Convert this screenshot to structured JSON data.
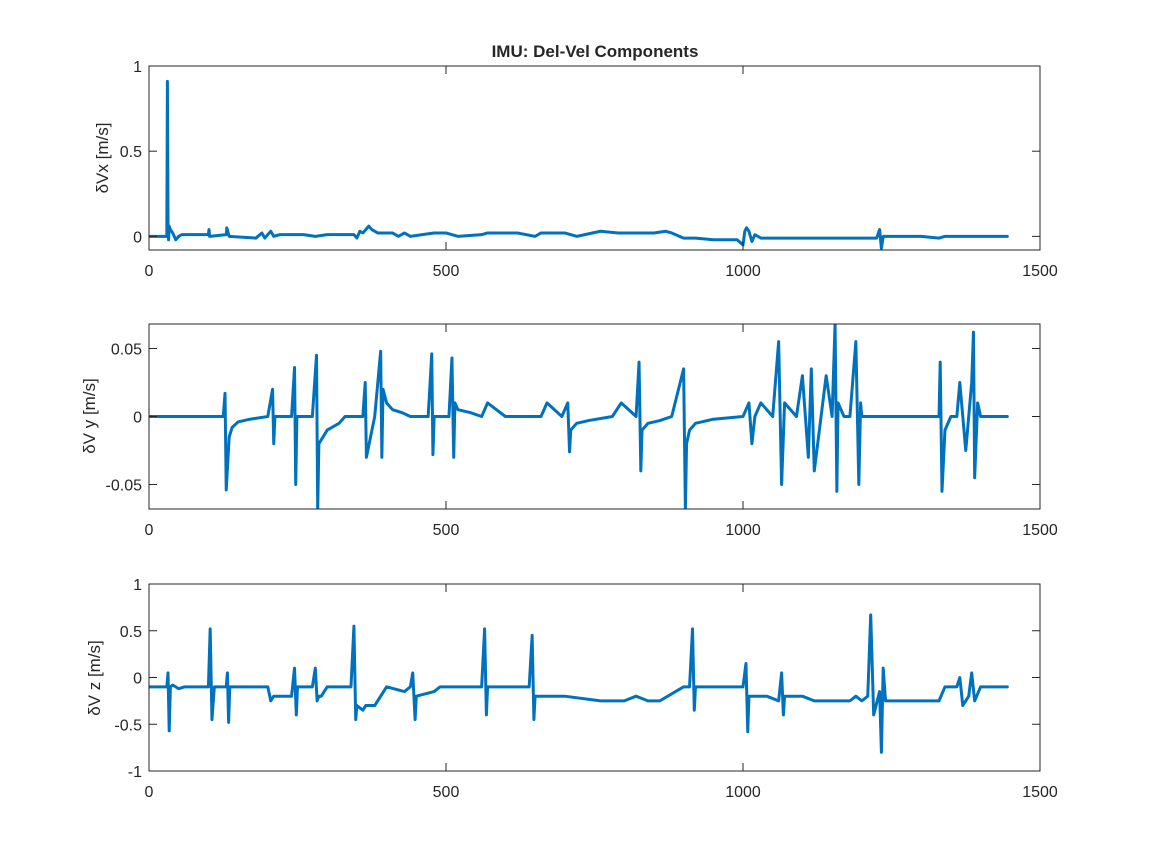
{
  "chart_data": [
    {
      "type": "line",
      "title": "IMU: Del-Vel Components",
      "ylabel": "δVx [m/s]",
      "xlim": [
        0,
        1500
      ],
      "ylim": [
        -0.08,
        1
      ],
      "xticks": [
        0,
        500,
        1000,
        1500
      ],
      "yticks": [
        0,
        0.5,
        1
      ],
      "xtick_labels": [
        "0",
        "500",
        "1000",
        "1500"
      ],
      "ytick_labels": [
        "0",
        "0.5",
        "1"
      ],
      "grid": false,
      "color": "#0072BD",
      "series": [
        {
          "x": [
            0,
            30,
            31,
            32,
            33,
            34,
            36,
            40,
            45,
            50,
            55,
            60,
            100,
            101,
            102,
            130,
            131,
            135,
            180,
            190,
            195,
            200,
            205,
            210,
            220,
            240,
            260,
            280,
            300,
            330,
            345,
            350,
            355,
            360,
            370,
            375,
            385,
            400,
            410,
            420,
            430,
            440,
            460,
            480,
            500,
            520,
            560,
            570,
            580,
            600,
            620,
            650,
            660,
            670,
            700,
            720,
            760,
            790,
            800,
            820,
            850,
            870,
            880,
            900,
            920,
            950,
            990,
            1000,
            1003,
            1006,
            1010,
            1015,
            1020,
            1025,
            1030,
            1040,
            1060,
            1100,
            1120,
            1140,
            1160,
            1180,
            1200,
            1225,
            1230,
            1233,
            1236,
            1240,
            1250,
            1300,
            1330,
            1340,
            1360,
            1380,
            1420,
            1445
          ],
          "y": [
            0,
            0,
            0.91,
            0.08,
            -0.02,
            0.06,
            0.04,
            0.02,
            -0.02,
            0,
            0.01,
            0.01,
            0.01,
            0.04,
            0,
            0.01,
            0.05,
            0,
            -0.01,
            0.02,
            -0.01,
            0.01,
            0.03,
            0,
            0.01,
            0.01,
            0.01,
            0,
            0.01,
            0.01,
            0.01,
            -0.01,
            0.03,
            0.02,
            0.06,
            0.04,
            0.02,
            0.02,
            0.02,
            0,
            0.02,
            0,
            0.01,
            0.02,
            0.02,
            0,
            0.01,
            0.02,
            0.02,
            0.02,
            0.02,
            0,
            0.02,
            0.02,
            0.02,
            0,
            0.03,
            0.02,
            0.02,
            0.02,
            0.02,
            0.03,
            0.02,
            -0.01,
            -0.01,
            -0.02,
            -0.02,
            -0.05,
            0.03,
            0.05,
            0.03,
            -0.03,
            0.01,
            0,
            -0.01,
            -0.01,
            -0.01,
            -0.01,
            -0.01,
            -0.01,
            -0.01,
            -0.01,
            -0.01,
            -0.01,
            0.04,
            -0.07,
            0,
            0,
            0,
            0,
            -0.01,
            0,
            0,
            0,
            0,
            0
          ]
        }
      ]
    },
    {
      "type": "line",
      "ylabel": "δV y [m/s]",
      "xlim": [
        0,
        1500
      ],
      "ylim": [
        -0.068,
        0.068
      ],
      "xticks": [
        0,
        500,
        1000,
        1500
      ],
      "yticks": [
        -0.05,
        0,
        0.05
      ],
      "xtick_labels": [
        "0",
        "500",
        "1000",
        "1500"
      ],
      "ytick_labels": [
        "-0.05",
        "0",
        "0.05"
      ],
      "grid": false,
      "color": "#0072BD",
      "series": [
        {
          "x": [
            0,
            125,
            128,
            130,
            135,
            140,
            150,
            170,
            200,
            208,
            210,
            212,
            240,
            245,
            247,
            249,
            275,
            282,
            284,
            286,
            300,
            320,
            330,
            360,
            364,
            366,
            380,
            390,
            392,
            394,
            400,
            410,
            425,
            440,
            470,
            476,
            478,
            480,
            490,
            505,
            510,
            513,
            515,
            520,
            540,
            560,
            570,
            600,
            660,
            670,
            695,
            705,
            708,
            710,
            720,
            740,
            780,
            795,
            820,
            825,
            828,
            830,
            840,
            860,
            880,
            900,
            903,
            905,
            910,
            920,
            950,
            1000,
            1010,
            1015,
            1020,
            1030,
            1050,
            1060,
            1065,
            1070,
            1090,
            1100,
            1110,
            1115,
            1120,
            1140,
            1150,
            1155,
            1158,
            1160,
            1170,
            1180,
            1190,
            1195,
            1198,
            1200,
            1210,
            1250,
            1330,
            1332,
            1335,
            1340,
            1350,
            1360,
            1365,
            1375,
            1385,
            1388,
            1390,
            1395,
            1400,
            1445
          ],
          "y": [
            0,
            0,
            0.017,
            -0.054,
            -0.015,
            -0.008,
            -0.004,
            -0.002,
            0,
            0.02,
            -0.02,
            0,
            0,
            0.036,
            -0.05,
            0,
            0,
            0.045,
            -0.068,
            -0.02,
            -0.01,
            -0.005,
            0,
            0,
            0.025,
            -0.03,
            0,
            0.048,
            -0.03,
            0.02,
            0.01,
            0.005,
            0.003,
            0,
            0,
            0.046,
            -0.028,
            0,
            0,
            0,
            0.043,
            -0.03,
            0.01,
            0.005,
            0.003,
            0,
            0.01,
            0,
            0,
            0.01,
            0,
            0.01,
            -0.026,
            -0.01,
            -0.005,
            -0.003,
            0,
            0.01,
            0,
            0.04,
            -0.04,
            -0.01,
            -0.005,
            -0.003,
            0,
            0.035,
            -0.068,
            -0.02,
            -0.01,
            -0.005,
            -0.002,
            0,
            0.01,
            -0.02,
            0,
            0.01,
            0,
            0.055,
            -0.05,
            0.01,
            0,
            0.03,
            -0.03,
            0.035,
            -0.04,
            0.03,
            0,
            0.068,
            -0.055,
            0.01,
            0,
            0,
            0.055,
            -0.05,
            0.01,
            0,
            0,
            0,
            0,
            0.04,
            -0.055,
            -0.01,
            0,
            0,
            0.025,
            -0.025,
            0.025,
            0.062,
            -0.045,
            0.01,
            0,
            0
          ],
          "note_unused": null
        }
      ]
    },
    {
      "type": "line",
      "ylabel": "δV z [m/s]",
      "xlim": [
        0,
        1500
      ],
      "ylim": [
        -1,
        1
      ],
      "xticks": [
        0,
        500,
        1000,
        1500
      ],
      "yticks": [
        -1,
        -0.5,
        0,
        0.5,
        1
      ],
      "xtick_labels": [
        "0",
        "500",
        "1000",
        "1500"
      ],
      "ytick_labels": [
        "-1",
        "-0.5",
        "0",
        "0.5",
        "1"
      ],
      "grid": false,
      "color": "#0072BD",
      "series": [
        {
          "x": [
            0,
            30,
            32,
            34,
            36,
            40,
            50,
            60,
            100,
            103,
            106,
            110,
            130,
            132,
            134,
            136,
            180,
            200,
            205,
            210,
            220,
            240,
            245,
            248,
            250,
            275,
            280,
            283,
            286,
            290,
            300,
            340,
            345,
            348,
            350,
            360,
            365,
            380,
            400,
            430,
            440,
            444,
            448,
            450,
            480,
            490,
            500,
            540,
            560,
            565,
            568,
            570,
            600,
            640,
            645,
            648,
            650,
            700,
            760,
            800,
            820,
            840,
            860,
            900,
            910,
            915,
            918,
            920,
            940,
            980,
            1000,
            1005,
            1008,
            1010,
            1040,
            1060,
            1065,
            1068,
            1070,
            1100,
            1120,
            1140,
            1160,
            1180,
            1190,
            1200,
            1210,
            1215,
            1220,
            1230,
            1233,
            1236,
            1240,
            1250,
            1280,
            1300,
            1330,
            1340,
            1350,
            1360,
            1365,
            1370,
            1380,
            1385,
            1390,
            1400,
            1445
          ],
          "y": [
            -0.1,
            -0.1,
            0.05,
            -0.57,
            -0.1,
            -0.08,
            -0.12,
            -0.1,
            -0.1,
            0.52,
            -0.45,
            -0.1,
            -0.1,
            0.05,
            -0.48,
            -0.1,
            -0.1,
            -0.1,
            -0.25,
            -0.2,
            -0.2,
            -0.2,
            0.1,
            -0.4,
            -0.1,
            -0.1,
            0.1,
            -0.25,
            -0.2,
            -0.2,
            -0.1,
            -0.1,
            0.55,
            -0.45,
            -0.3,
            -0.35,
            -0.3,
            -0.3,
            -0.1,
            -0.15,
            -0.1,
            0.05,
            -0.45,
            -0.2,
            -0.15,
            -0.1,
            -0.1,
            -0.1,
            -0.1,
            0.52,
            -0.4,
            -0.1,
            -0.1,
            -0.1,
            0.45,
            -0.45,
            -0.2,
            -0.2,
            -0.25,
            -0.25,
            -0.2,
            -0.25,
            -0.25,
            -0.1,
            -0.1,
            0.52,
            -0.35,
            -0.1,
            -0.1,
            -0.1,
            -0.1,
            0.15,
            -0.58,
            -0.2,
            -0.2,
            -0.25,
            0.05,
            -0.4,
            -0.2,
            -0.2,
            -0.25,
            -0.25,
            -0.25,
            -0.25,
            -0.2,
            -0.25,
            -0.2,
            0.67,
            -0.4,
            -0.15,
            -0.8,
            0.1,
            -0.25,
            -0.25,
            -0.25,
            -0.25,
            -0.25,
            -0.1,
            -0.1,
            -0.1,
            0,
            -0.3,
            -0.2,
            0.05,
            -0.25,
            -0.1,
            -0.1
          ]
        }
      ]
    }
  ]
}
